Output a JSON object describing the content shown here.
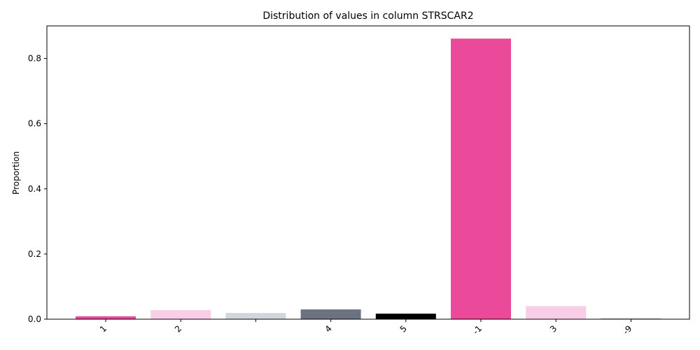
{
  "chart_data": {
    "type": "bar",
    "title": "Distribution of values in column STRSCAR2",
    "xlabel": "",
    "ylabel": "Proportion",
    "categories": [
      "1",
      "2",
      "",
      "4",
      "5",
      "-1",
      "3",
      "-9"
    ],
    "values": [
      0.009,
      0.028,
      0.019,
      0.03,
      0.017,
      0.861,
      0.04,
      0.004
    ],
    "colors": [
      "#ea4a99",
      "#f9cde6",
      "#d1d5dc",
      "#6b7280",
      "#000000",
      "#ea4a99",
      "#f9cde6",
      "#d1d5dc"
    ],
    "ylim": [
      0,
      0.9
    ],
    "yticks": [
      0.0,
      0.2,
      0.4,
      0.6,
      0.8
    ],
    "ytick_labels": [
      "0.0",
      "0.2",
      "0.4",
      "0.6",
      "0.8"
    ],
    "grid": false,
    "legend": "none"
  }
}
